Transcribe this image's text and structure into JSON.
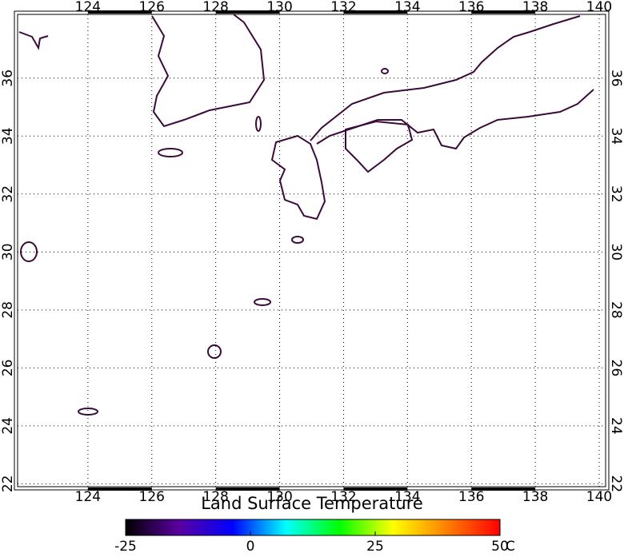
{
  "map": {
    "lon_range": [
      121.8,
      140.2
    ],
    "lat_range": [
      21.9,
      38.2
    ],
    "lon_ticks": [
      124,
      126,
      128,
      130,
      132,
      134,
      136,
      138,
      140
    ],
    "lat_ticks": [
      22,
      24,
      26,
      28,
      30,
      32,
      34,
      36
    ]
  },
  "title": "Land Surface Temperature",
  "colorbar": {
    "lim": [
      -25,
      50
    ],
    "ticks": [
      -25,
      0,
      25,
      50
    ],
    "unit": "C",
    "colors": [
      "#000000",
      "#5a00a0",
      "#0000ff",
      "#00ffff",
      "#00ff00",
      "#ffff00",
      "#ff8000",
      "#ff0000"
    ]
  }
}
